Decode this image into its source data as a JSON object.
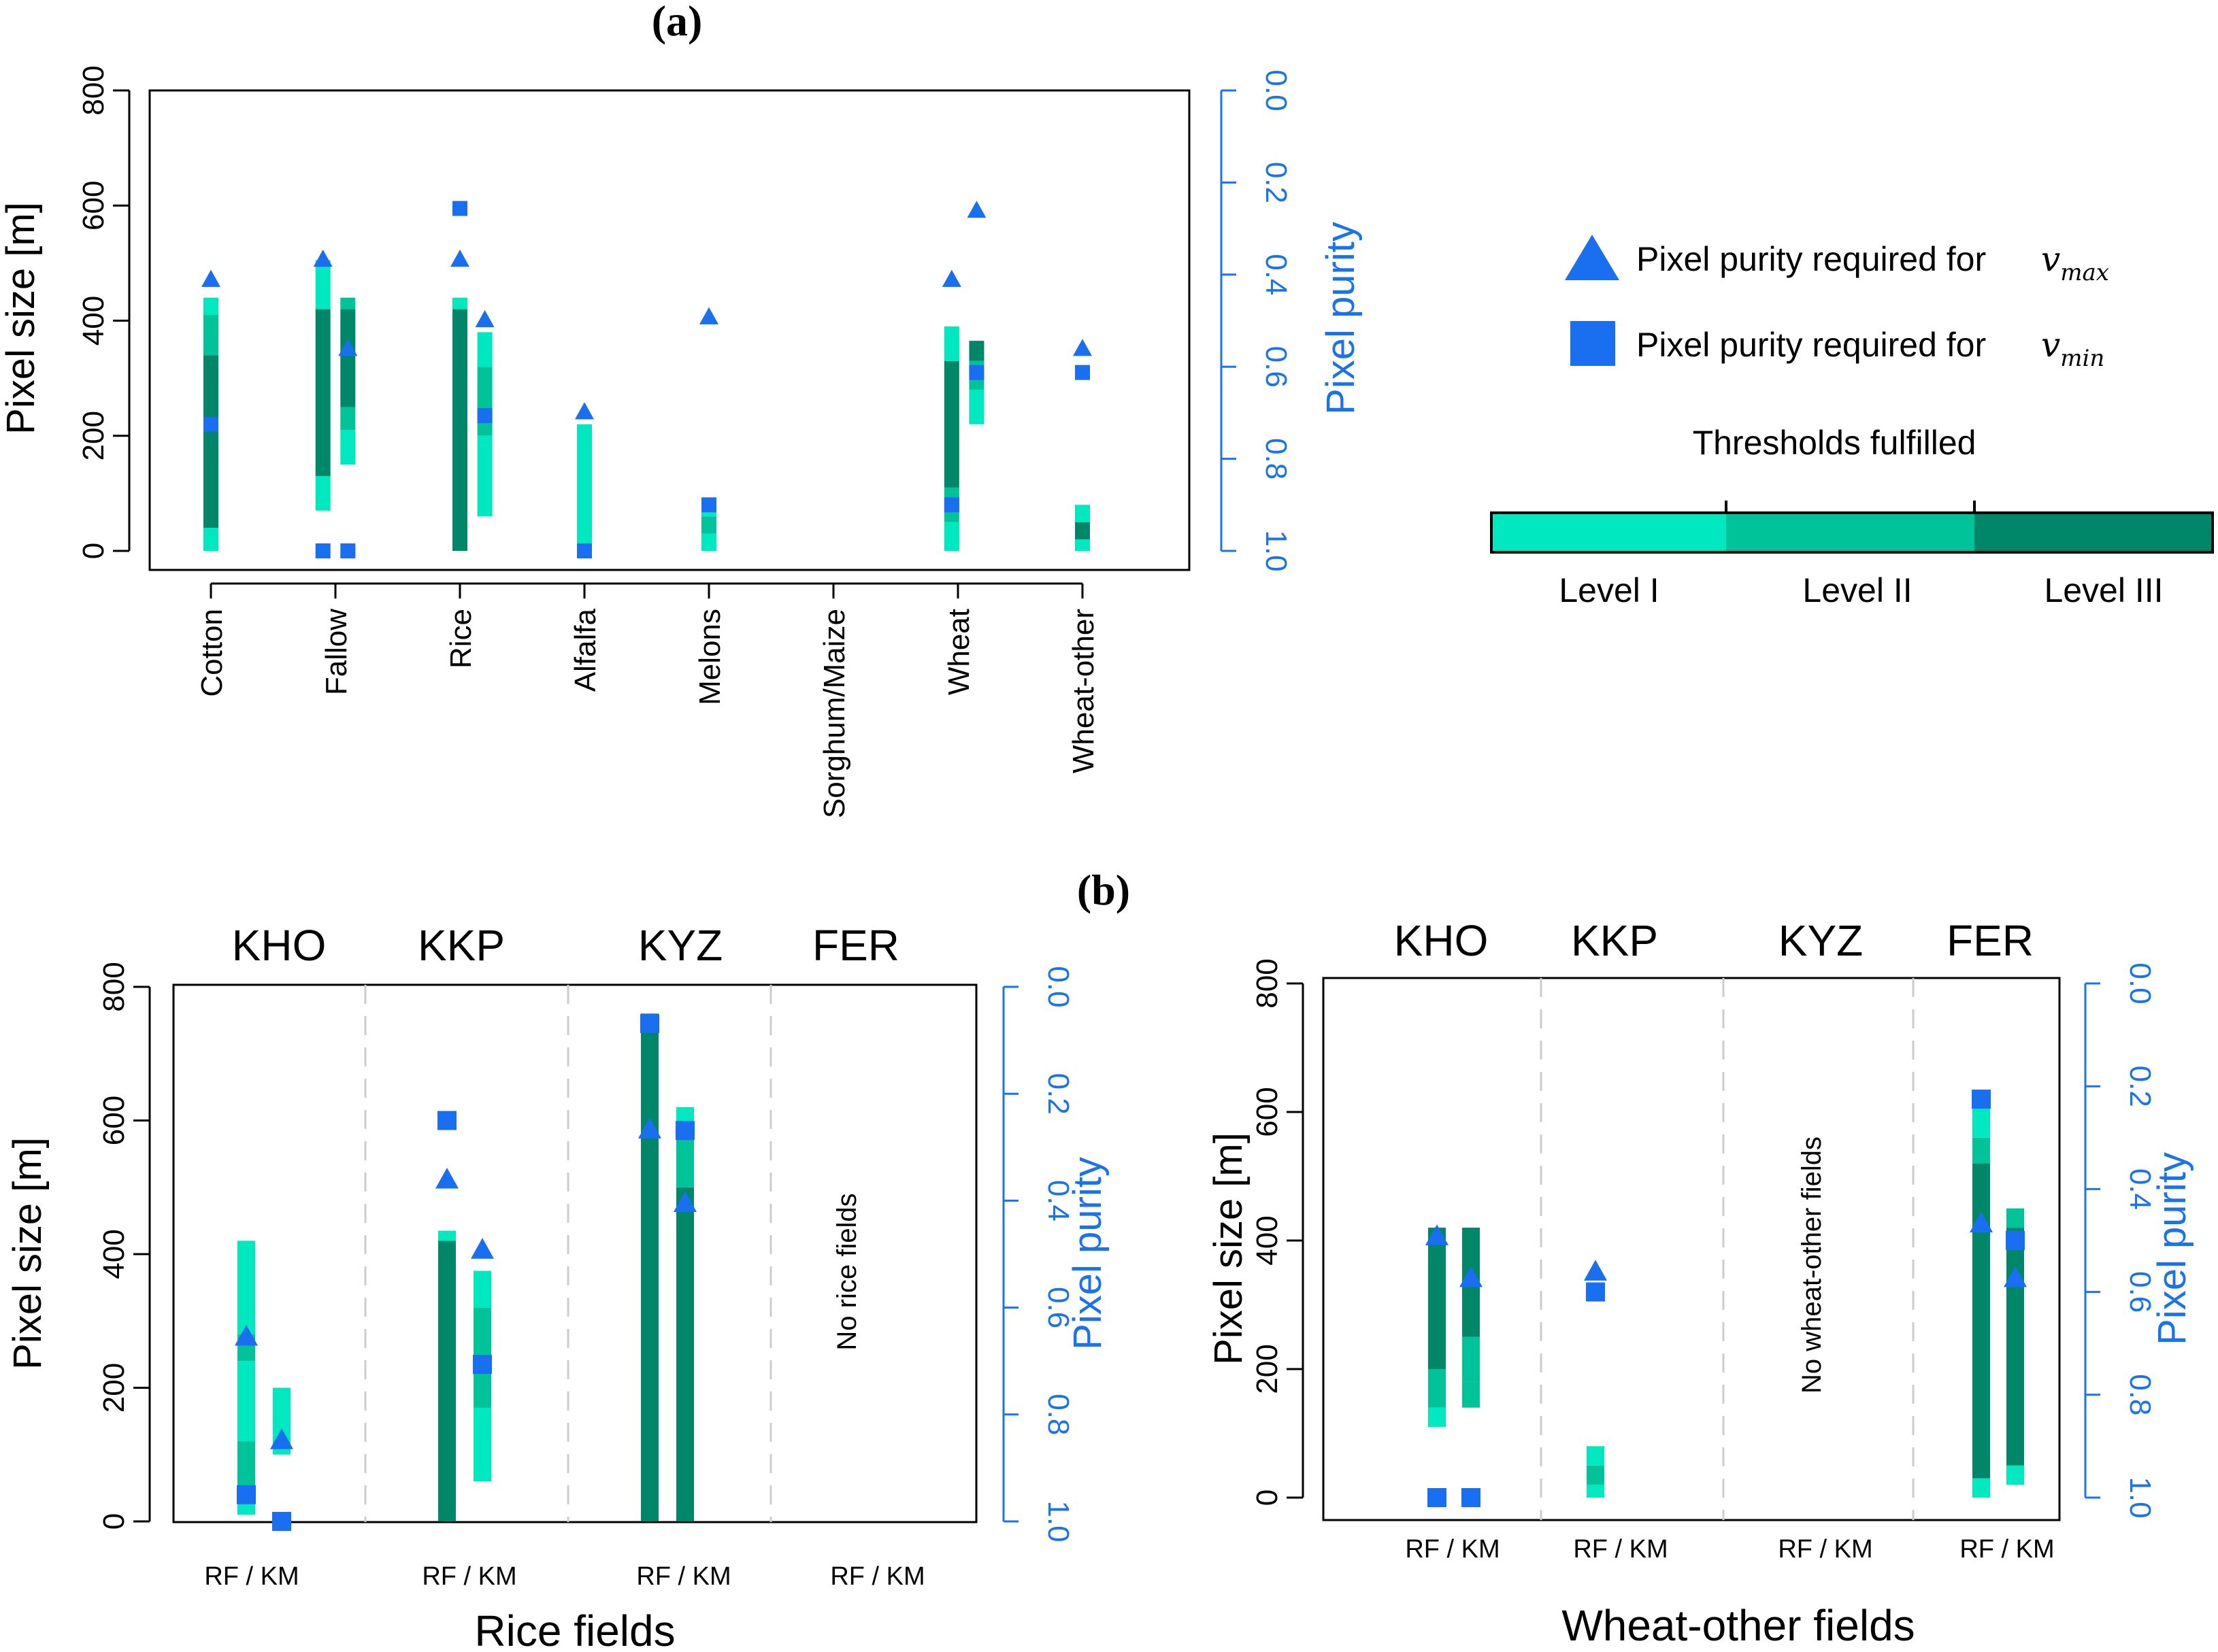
{
  "colors": {
    "level1": "#00e8bf",
    "level2": "#00c39a",
    "level3": "#00876a",
    "marker": "#1a6ef0",
    "axis_right": "#1a73e8"
  },
  "legend": {
    "vmax_label": "Pixel purity required for",
    "vmax_symbol": "v",
    "vmax_sub": "max",
    "vmin_label": "Pixel purity required for",
    "vmin_symbol": "v",
    "vmin_sub": "min",
    "thresholds_title": "Thresholds fulfilled",
    "levels": [
      "Level I",
      "Level II",
      "Level III"
    ]
  },
  "chart_data": [
    {
      "id": "a",
      "type": "range-bar",
      "panel_label": "(a)",
      "ylabel": "Pixel size [m]",
      "ylabel_right": "Pixel purity",
      "ylim": [
        0,
        800
      ],
      "yticks": [
        0,
        200,
        400,
        600,
        800
      ],
      "ylim_right": [
        1.0,
        0.0
      ],
      "yticks_right": [
        "0.0",
        "0.2",
        "0.4",
        "0.6",
        "0.8",
        "1.0"
      ],
      "categories": [
        "Cotton",
        "Fallow",
        "Rice",
        "Alfalfa",
        "Melons",
        "Sorghum/Maize",
        "Wheat",
        "Wheat-other"
      ],
      "bars": [
        {
          "cat": 0,
          "off": 0,
          "segments": [
            [
              0,
              40,
              1
            ],
            [
              40,
              340,
              3
            ],
            [
              340,
              410,
              2
            ],
            [
              410,
              440,
              1
            ]
          ]
        },
        {
          "cat": 1,
          "off": -0.1,
          "segments": [
            [
              70,
              130,
              1
            ],
            [
              130,
              420,
              3
            ],
            [
              420,
              490,
              1
            ],
            [
              490,
              505,
              1
            ]
          ]
        },
        {
          "cat": 1,
          "off": 0.1,
          "segments": [
            [
              150,
              210,
              1
            ],
            [
              210,
              250,
              2
            ],
            [
              250,
              420,
              3
            ],
            [
              420,
              440,
              2
            ]
          ]
        },
        {
          "cat": 2,
          "off": 0,
          "segments": [
            [
              0,
              420,
              3
            ],
            [
              420,
              440,
              1
            ]
          ]
        },
        {
          "cat": 2,
          "off": 0.2,
          "segments": [
            [
              60,
              200,
              1
            ],
            [
              200,
              320,
              2
            ],
            [
              320,
              380,
              1
            ]
          ]
        },
        {
          "cat": 3,
          "off": 0,
          "segments": [
            [
              0,
              220,
              1
            ]
          ]
        },
        {
          "cat": 4,
          "off": 0,
          "segments": [
            [
              0,
              30,
              1
            ],
            [
              30,
              60,
              2
            ],
            [
              60,
              75,
              1
            ]
          ]
        },
        {
          "cat": 6,
          "off": -0.05,
          "segments": [
            [
              0,
              50,
              1
            ],
            [
              50,
              110,
              2
            ],
            [
              110,
              330,
              3
            ],
            [
              330,
              390,
              1
            ]
          ]
        },
        {
          "cat": 6,
          "off": 0.15,
          "segments": [
            [
              220,
              280,
              1
            ],
            [
              280,
              330,
              2
            ],
            [
              330,
              365,
              3
            ]
          ]
        },
        {
          "cat": 7,
          "off": 0,
          "segments": [
            [
              0,
              20,
              1
            ],
            [
              20,
              50,
              3
            ],
            [
              50,
              80,
              1
            ]
          ]
        }
      ],
      "triangles": [
        [
          0,
          0,
          470
        ],
        [
          1,
          -0.1,
          505
        ],
        [
          1,
          0.1,
          350
        ],
        [
          2,
          0,
          505
        ],
        [
          2,
          0.2,
          400
        ],
        [
          3,
          0,
          240
        ],
        [
          4,
          0,
          405
        ],
        [
          6,
          -0.05,
          470
        ],
        [
          6,
          0.15,
          590
        ],
        [
          7,
          0,
          350
        ]
      ],
      "squares": [
        [
          0,
          0,
          220
        ],
        [
          1,
          -0.1,
          0
        ],
        [
          1,
          0.1,
          0
        ],
        [
          2,
          0,
          595
        ],
        [
          2,
          0.2,
          235
        ],
        [
          3,
          0,
          0
        ],
        [
          4,
          0,
          80
        ],
        [
          6,
          -0.05,
          80
        ],
        [
          6,
          0.15,
          310
        ],
        [
          7,
          0,
          310
        ]
      ]
    },
    {
      "id": "b-rice",
      "type": "range-bar",
      "panel_label": "(b)",
      "xlabel": "Rice fields",
      "ylabel": "Pixel size [m]",
      "ylabel_right": "Pixel purity",
      "ylim": [
        0,
        800
      ],
      "yticks": [
        0,
        200,
        400,
        600,
        800
      ],
      "yticks_right": [
        "0.0",
        "0.2",
        "0.4",
        "0.6",
        "0.8",
        "1.0"
      ],
      "regions": [
        "KHO",
        "KKP",
        "KYZ",
        "FER"
      ],
      "group_label": "RF / KM",
      "empty_note": "No rice fields",
      "empty_region": 3,
      "bars": [
        {
          "reg": 0,
          "m": 0,
          "segments": [
            [
              10,
              40,
              1
            ],
            [
              40,
              120,
              2
            ],
            [
              120,
              240,
              1
            ],
            [
              240,
              280,
              2
            ],
            [
              280,
              420,
              1
            ]
          ]
        },
        {
          "reg": 0,
          "m": 1,
          "segments": [
            [
              100,
              130,
              1
            ],
            [
              130,
              200,
              1
            ]
          ]
        },
        {
          "reg": 1,
          "m": 0,
          "segments": [
            [
              0,
              420,
              3
            ],
            [
              420,
              435,
              1
            ]
          ]
        },
        {
          "reg": 1,
          "m": 1,
          "segments": [
            [
              60,
              170,
              1
            ],
            [
              170,
              320,
              2
            ],
            [
              320,
              375,
              1
            ]
          ]
        },
        {
          "reg": 2,
          "m": 0,
          "segments": [
            [
              0,
              760,
              3
            ]
          ]
        },
        {
          "reg": 2,
          "m": 1,
          "segments": [
            [
              0,
              500,
              3
            ],
            [
              500,
              580,
              2
            ],
            [
              580,
              620,
              1
            ]
          ]
        }
      ],
      "triangles": [
        [
          0,
          0,
          275
        ],
        [
          0,
          1,
          120
        ],
        [
          1,
          0,
          510
        ],
        [
          1,
          1,
          405
        ],
        [
          2,
          0,
          585
        ],
        [
          2,
          1,
          475
        ]
      ],
      "squares": [
        [
          0,
          0,
          40
        ],
        [
          0,
          1,
          0
        ],
        [
          1,
          0,
          600
        ],
        [
          1,
          1,
          235
        ],
        [
          2,
          0,
          745
        ],
        [
          2,
          1,
          585
        ]
      ]
    },
    {
      "id": "b-wheat",
      "type": "range-bar",
      "xlabel": "Wheat-other fields",
      "ylabel": "Pixel size [m]",
      "ylabel_right": "Pixel purity",
      "ylim": [
        0,
        800
      ],
      "yticks": [
        0,
        200,
        400,
        600,
        800
      ],
      "yticks_right": [
        "0.0",
        "0.2",
        "0.4",
        "0.6",
        "0.8",
        "1.0"
      ],
      "regions": [
        "KHO",
        "KKP",
        "KYZ",
        "FER"
      ],
      "group_label": "RF / KM",
      "empty_note": "No wheat-other fields",
      "empty_region": 2,
      "bars": [
        {
          "reg": 0,
          "m": 0,
          "segments": [
            [
              110,
              140,
              1
            ],
            [
              140,
              200,
              2
            ],
            [
              200,
              420,
              3
            ]
          ]
        },
        {
          "reg": 0,
          "m": 1,
          "segments": [
            [
              140,
              180,
              2
            ],
            [
              180,
              250,
              2
            ],
            [
              250,
              420,
              3
            ]
          ]
        },
        {
          "reg": 1,
          "m": 0,
          "segments": [
            [
              0,
              20,
              1
            ],
            [
              20,
              50,
              2
            ],
            [
              50,
              80,
              1
            ]
          ]
        },
        {
          "reg": 3,
          "m": 0,
          "segments": [
            [
              0,
              30,
              1
            ],
            [
              30,
              520,
              3
            ],
            [
              520,
              560,
              2
            ],
            [
              560,
              620,
              1
            ]
          ]
        },
        {
          "reg": 3,
          "m": 1,
          "segments": [
            [
              20,
              50,
              1
            ],
            [
              50,
              420,
              3
            ],
            [
              420,
              450,
              2
            ]
          ]
        }
      ],
      "triangles": [
        [
          0,
          0,
          405
        ],
        [
          0,
          1,
          340
        ],
        [
          1,
          0,
          350
        ],
        [
          3,
          0,
          425
        ],
        [
          3,
          1,
          340
        ]
      ],
      "squares": [
        [
          0,
          0,
          0
        ],
        [
          0,
          1,
          0
        ],
        [
          1,
          0,
          320
        ],
        [
          3,
          0,
          620
        ],
        [
          3,
          1,
          400
        ]
      ]
    }
  ]
}
